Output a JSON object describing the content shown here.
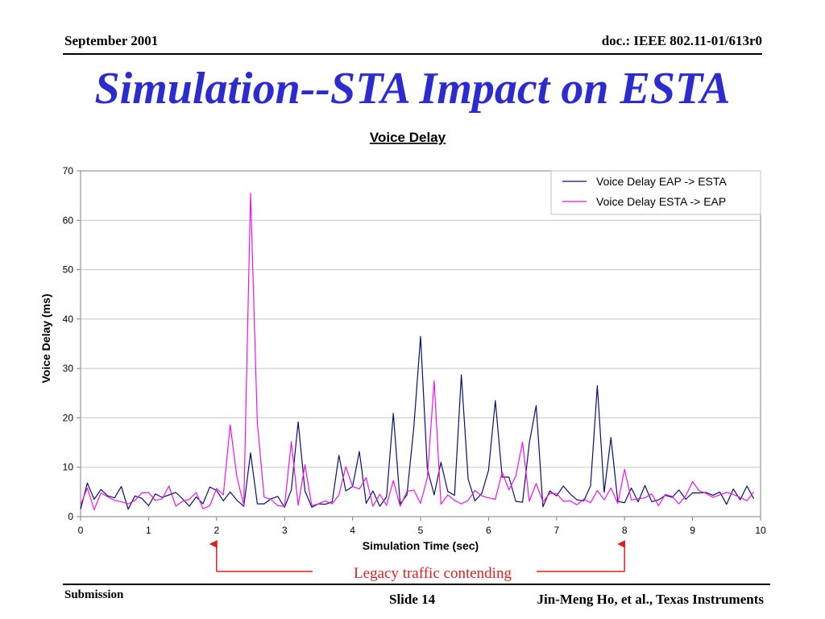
{
  "header": {
    "date": "September 2001",
    "doc": "doc.: IEEE 802.11-01/613r0",
    "title": "Simulation--STA Impact on ESTA"
  },
  "footer": {
    "left": "Submission",
    "slide": "Slide 14",
    "author": "Jin-Meng Ho, et al., Texas Instruments"
  },
  "annotation": {
    "text": "Legacy traffic contending",
    "from_x": 2,
    "to_x": 8,
    "color": "#e0201c"
  },
  "chart_data": {
    "type": "line",
    "title": "Voice Delay",
    "xlabel": "Simulation Time (sec)",
    "ylabel": "Voice Delay (ms)",
    "xlim": [
      0,
      10
    ],
    "ylim": [
      0,
      70
    ],
    "xticks": [
      "0",
      "1",
      "2",
      "3",
      "4",
      "5",
      "6",
      "7",
      "8",
      "9",
      "10"
    ],
    "yticks": [
      "0",
      "10",
      "20",
      "30",
      "40",
      "50",
      "60",
      "70"
    ],
    "grid": "horizontal",
    "legend": "top-right",
    "x_step": 0.1,
    "series": [
      {
        "name": "Voice Delay EAP -> ESTA",
        "color": "#0a1070",
        "values": [
          1.5,
          6.8,
          3.5,
          5.5,
          4.2,
          3.8,
          6.1,
          1.5,
          4.2,
          3.7,
          2.2,
          4.6,
          3.9,
          4.4,
          4.9,
          3.6,
          2.1,
          4.0,
          2.6,
          6.0,
          5.3,
          3.2,
          5.0,
          3.3,
          2.1,
          12.9,
          2.6,
          2.6,
          3.6,
          4.1,
          1.9,
          5.4,
          19.2,
          5.2,
          1.9,
          2.6,
          2.5,
          3.0,
          12.4,
          5.2,
          6.1,
          13.2,
          2.7,
          5.2,
          2.1,
          4.0,
          20.9,
          2.6,
          4.4,
          18.0,
          36.5,
          9.7,
          4.4,
          11.0,
          5.1,
          4.3,
          28.7,
          7.6,
          3.2,
          4.7,
          9.4,
          23.5,
          8.0,
          8.0,
          3.1,
          2.9,
          14.9,
          22.5,
          2.0,
          5.2,
          4.2,
          6.2,
          4.6,
          3.4,
          3.2,
          6.2,
          26.5,
          4.9,
          16.0,
          3.1,
          2.8,
          5.8,
          3.0,
          6.3,
          3.0,
          3.4,
          4.3,
          3.9,
          5.4,
          3.5,
          4.8,
          4.8,
          4.9,
          4.3,
          5.0,
          2.5,
          5.6,
          3.4,
          6.2,
          3.6
        ]
      },
      {
        "name": "Voice Delay ESTA -> EAP",
        "color": "#ee12ee",
        "values": [
          2.4,
          5.8,
          1.4,
          4.8,
          4.0,
          3.3,
          3.0,
          2.6,
          3.3,
          4.8,
          4.9,
          3.3,
          3.6,
          6.2,
          2.1,
          3.1,
          3.5,
          4.9,
          1.6,
          2.2,
          5.7,
          4.4,
          18.6,
          8.0,
          2.3,
          65.5,
          19.0,
          3.9,
          3.5,
          2.2,
          2.1,
          15.2,
          2.3,
          10.5,
          2.2,
          2.6,
          3.2,
          2.6,
          4.4,
          10.1,
          6.1,
          5.6,
          7.9,
          2.1,
          4.5,
          2.3,
          7.3,
          2.1,
          5.1,
          5.4,
          2.7,
          7.9,
          27.5,
          2.5,
          4.4,
          3.3,
          2.6,
          3.3,
          5.3,
          4.2,
          3.8,
          3.5,
          9.0,
          5.4,
          8.2,
          15.1,
          3.1,
          6.7,
          3.0,
          4.7,
          4.7,
          3.1,
          3.2,
          2.4,
          3.5,
          2.8,
          5.3,
          3.4,
          5.8,
          2.7,
          9.6,
          3.4,
          3.6,
          3.8,
          4.6,
          2.2,
          4.5,
          4.1,
          2.6,
          4.2,
          7.1,
          5.2,
          4.7,
          3.9,
          4.4,
          4.9,
          4.5,
          3.9,
          3.2,
          5.0
        ]
      }
    ]
  }
}
